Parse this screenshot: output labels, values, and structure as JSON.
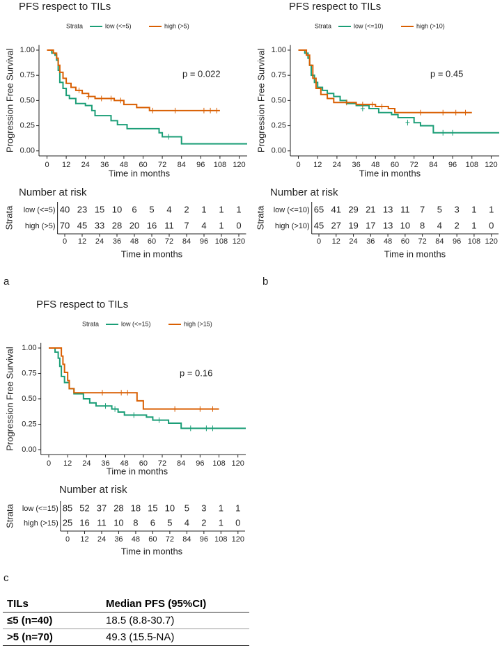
{
  "chart_data": [
    {
      "type": "step",
      "panel_label": "a",
      "title": "PFS respect to TILs",
      "legend_title": "Strata",
      "xlabel": "Time in months",
      "ylabel": "Progression Free Survival",
      "annotation": "p = 0.022",
      "xlim": [
        -5,
        125
      ],
      "ylim": [
        -0.05,
        1.05
      ],
      "xticks": [
        0,
        12,
        24,
        36,
        48,
        60,
        72,
        84,
        96,
        108,
        120
      ],
      "yticks": [
        {
          "value": 0,
          "label": "0.00"
        },
        {
          "value": 0.25,
          "label": "0.25"
        },
        {
          "value": 0.5,
          "label": "0.50"
        },
        {
          "value": 0.75,
          "label": "0.75"
        },
        {
          "value": 1,
          "label": "1.00"
        }
      ],
      "risk_table": {
        "title": "Number at risk",
        "ylabel": "Strata",
        "xlabel": "Time in months"
      },
      "series": [
        {
          "name": "low (<=5)",
          "color": "#1b9e77",
          "x": [
            0,
            3,
            5,
            6,
            7,
            8,
            10,
            12,
            14,
            18,
            24,
            28,
            30,
            40,
            44,
            50,
            70,
            72,
            84,
            125
          ],
          "values": [
            1,
            0.97,
            0.95,
            0.9,
            0.8,
            0.68,
            0.62,
            0.55,
            0.52,
            0.47,
            0.45,
            0.4,
            0.35,
            0.3,
            0.26,
            0.22,
            0.18,
            0.14,
            0.07,
            0.07
          ],
          "censor_x": [
            76
          ],
          "censor_values": [
            0.14
          ],
          "at_risk": [
            40,
            23,
            15,
            10,
            6,
            5,
            4,
            2,
            1,
            1,
            1
          ]
        },
        {
          "name": "high (>5)",
          "color": "#d95f02",
          "x": [
            0,
            4,
            6,
            7,
            8,
            10,
            12,
            15,
            18,
            22,
            26,
            30,
            42,
            48,
            56,
            64,
            108
          ],
          "values": [
            1,
            0.97,
            0.92,
            0.85,
            0.78,
            0.72,
            0.67,
            0.63,
            0.6,
            0.57,
            0.54,
            0.52,
            0.5,
            0.46,
            0.43,
            0.4,
            0.4
          ],
          "censor_x": [
            20,
            26,
            34,
            40,
            46,
            66,
            80,
            98,
            102,
            106
          ],
          "censor_values": [
            0.6,
            0.54,
            0.52,
            0.52,
            0.5,
            0.4,
            0.4,
            0.4,
            0.4,
            0.4
          ],
          "at_risk": [
            70,
            45,
            33,
            28,
            20,
            16,
            11,
            7,
            4,
            1,
            0
          ]
        }
      ]
    },
    {
      "type": "step",
      "panel_label": "b",
      "title": "PFS respect to TILs",
      "legend_title": "Strata",
      "xlabel": "Time in months",
      "ylabel": "Progression Free Survival",
      "annotation": "p = 0.45",
      "xlim": [
        -5,
        125
      ],
      "ylim": [
        -0.05,
        1.05
      ],
      "xticks": [
        0,
        12,
        24,
        36,
        48,
        60,
        72,
        84,
        96,
        108,
        120
      ],
      "yticks": [
        {
          "value": 0,
          "label": "0.00"
        },
        {
          "value": 0.25,
          "label": "0.25"
        },
        {
          "value": 0.5,
          "label": "0.50"
        },
        {
          "value": 0.75,
          "label": "0.75"
        },
        {
          "value": 1,
          "label": "1.00"
        }
      ],
      "risk_table": {
        "title": "Number at risk",
        "ylabel": "Strata",
        "xlabel": "Time in months"
      },
      "series": [
        {
          "name": "low (<=10)",
          "color": "#1b9e77",
          "x": [
            0,
            4,
            6,
            7,
            8,
            10,
            12,
            15,
            18,
            22,
            26,
            30,
            36,
            44,
            50,
            58,
            62,
            72,
            76,
            84,
            125
          ],
          "values": [
            1,
            0.97,
            0.92,
            0.85,
            0.75,
            0.68,
            0.63,
            0.6,
            0.57,
            0.54,
            0.5,
            0.47,
            0.45,
            0.42,
            0.38,
            0.36,
            0.33,
            0.28,
            0.25,
            0.18,
            0.18
          ],
          "censor_x": [
            40,
            68,
            90,
            96
          ],
          "censor_values": [
            0.42,
            0.28,
            0.18,
            0.18
          ],
          "at_risk": [
            65,
            41,
            29,
            21,
            13,
            11,
            7,
            5,
            3,
            1,
            1
          ]
        },
        {
          "name": "high (>10)",
          "color": "#d95f02",
          "x": [
            0,
            5,
            7,
            9,
            11,
            14,
            18,
            22,
            36,
            48,
            56,
            60,
            108
          ],
          "values": [
            1,
            0.95,
            0.85,
            0.72,
            0.62,
            0.56,
            0.52,
            0.48,
            0.46,
            0.44,
            0.42,
            0.38,
            0.38
          ],
          "censor_x": [
            30,
            40,
            46,
            52,
            76,
            90,
            98,
            104
          ],
          "censor_values": [
            0.48,
            0.46,
            0.46,
            0.44,
            0.38,
            0.38,
            0.38,
            0.38
          ],
          "at_risk": [
            45,
            27,
            19,
            17,
            13,
            10,
            8,
            4,
            2,
            1,
            0
          ]
        }
      ]
    },
    {
      "type": "step",
      "panel_label": "c",
      "title": "PFS respect to TILs",
      "legend_title": "Strata",
      "xlabel": "Time in months",
      "ylabel": "Progression Free Survival",
      "annotation": "p = 0.16",
      "xlim": [
        -5,
        125
      ],
      "ylim": [
        -0.05,
        1.05
      ],
      "xticks": [
        0,
        12,
        24,
        36,
        48,
        60,
        72,
        84,
        96,
        108,
        120
      ],
      "yticks": [
        {
          "value": 0,
          "label": "0.00"
        },
        {
          "value": 0.25,
          "label": "0.25"
        },
        {
          "value": 0.5,
          "label": "0.50"
        },
        {
          "value": 0.75,
          "label": "0.75"
        },
        {
          "value": 1,
          "label": "1.00"
        }
      ],
      "risk_table": {
        "title": "Number at risk",
        "ylabel": "Strata",
        "xlabel": "Time in months"
      },
      "series": [
        {
          "name": "low (<=15)",
          "color": "#1b9e77",
          "x": [
            0,
            4,
            6,
            7,
            8,
            10,
            13,
            16,
            22,
            26,
            30,
            40,
            44,
            48,
            62,
            66,
            76,
            84,
            125
          ],
          "values": [
            1,
            0.96,
            0.9,
            0.82,
            0.72,
            0.66,
            0.6,
            0.55,
            0.5,
            0.46,
            0.43,
            0.4,
            0.37,
            0.34,
            0.32,
            0.29,
            0.26,
            0.21,
            0.21
          ],
          "censor_x": [
            36,
            42,
            54,
            70,
            90,
            100,
            104
          ],
          "censor_values": [
            0.43,
            0.4,
            0.34,
            0.29,
            0.21,
            0.21,
            0.21
          ],
          "at_risk": [
            85,
            52,
            37,
            28,
            18,
            15,
            10,
            5,
            3,
            1,
            1
          ]
        },
        {
          "name": "high (>15)",
          "color": "#d95f02",
          "x": [
            0,
            8,
            9,
            10,
            12,
            13,
            16,
            48,
            56,
            60,
            108
          ],
          "values": [
            1,
            0.92,
            0.84,
            0.76,
            0.68,
            0.6,
            0.56,
            0.56,
            0.48,
            0.4,
            0.4
          ],
          "censor_x": [
            34,
            46,
            50,
            80,
            96,
            104
          ],
          "censor_values": [
            0.56,
            0.56,
            0.56,
            0.4,
            0.4,
            0.4
          ],
          "at_risk": [
            25,
            16,
            11,
            10,
            8,
            6,
            5,
            4,
            2,
            1,
            0
          ]
        }
      ]
    }
  ],
  "table": {
    "header": [
      "TILs",
      "Median PFS (95%CI)"
    ],
    "rows": [
      [
        "≤5 (n=40)",
        "18.5 (8.8-30.7)"
      ],
      [
        ">5 (n=70)",
        "49.3 (15.5-NA)"
      ]
    ]
  }
}
